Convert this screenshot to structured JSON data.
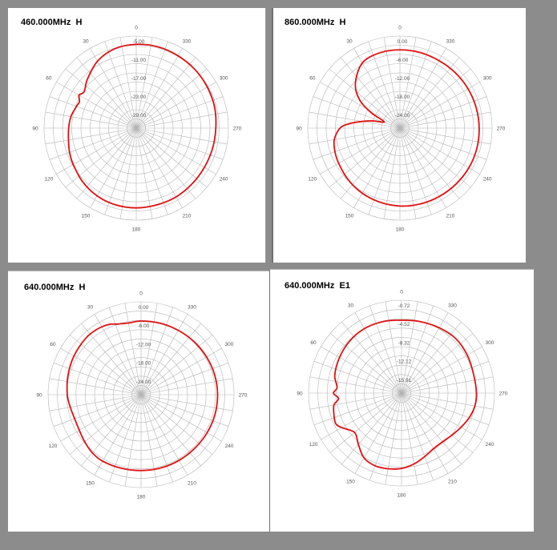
{
  "chart_data": [
    {
      "type": "line",
      "polar": true,
      "title": "460.000MHz  H",
      "angle_tick_labels": [
        "0",
        "30",
        "60",
        "90",
        "120",
        "150",
        "180",
        "210",
        "240",
        "270",
        "300",
        "330"
      ],
      "radial_tick_labels": [
        "-5.00",
        "-11.00",
        "-17.00",
        "-23.00",
        "-29.00"
      ],
      "rlim": [
        -35,
        -5
      ],
      "grid": true,
      "series": [
        {
          "color": "#e01010",
          "angles_deg": [
            0,
            15,
            30,
            45,
            55,
            60,
            65,
            70,
            80,
            90,
            100,
            110,
            120,
            135,
            150,
            165,
            180,
            195,
            210,
            225,
            240,
            255,
            270,
            285,
            300,
            315,
            330,
            345
          ],
          "values": [
            -7.7,
            -8.2,
            -9.8,
            -12.5,
            -14.3,
            -13.5,
            -14.6,
            -14.3,
            -13.4,
            -13.0,
            -12.6,
            -11.9,
            -11.3,
            -10.3,
            -9.5,
            -9.1,
            -9.0,
            -9.1,
            -9.1,
            -9.3,
            -9.4,
            -9.3,
            -9.1,
            -8.6,
            -8.3,
            -8.0,
            -7.8,
            -7.6
          ]
        }
      ]
    },
    {
      "type": "line",
      "polar": true,
      "title": "860.000MHz  H",
      "angle_tick_labels": [
        "0",
        "30",
        "60",
        "90",
        "120",
        "150",
        "180",
        "210",
        "240",
        "270",
        "300",
        "330"
      ],
      "radial_tick_labels": [
        "0.00",
        "-6.00",
        "-12.00",
        "-18.00",
        "-24.00"
      ],
      "rlim": [
        -30,
        0
      ],
      "grid": true,
      "series": [
        {
          "color": "#e01010",
          "angles_deg": [
            0,
            15,
            30,
            45,
            55,
            62,
            68,
            75,
            80,
            85,
            90,
            100,
            110,
            120,
            135,
            150,
            165,
            180,
            195,
            210,
            225,
            240,
            255,
            270,
            285,
            300,
            315,
            330,
            345
          ],
          "values": [
            -4.5,
            -4.6,
            -5.5,
            -9.5,
            -14.0,
            -19.5,
            -24.5,
            -21.0,
            -17.5,
            -13.5,
            -10.5,
            -8.3,
            -7.5,
            -7.0,
            -6.2,
            -5.5,
            -5.0,
            -4.6,
            -4.4,
            -4.3,
            -4.2,
            -4.1,
            -4.1,
            -4.2,
            -4.3,
            -4.4,
            -4.5,
            -4.6,
            -4.5
          ]
        }
      ]
    },
    {
      "type": "line",
      "polar": true,
      "title": "640.000MHz  H",
      "angle_tick_labels": [
        "0",
        "30",
        "60",
        "90",
        "120",
        "150",
        "180",
        "210",
        "240",
        "270",
        "300",
        "330"
      ],
      "radial_tick_labels": [
        "0.00",
        "-6.00",
        "-12.00",
        "-18.00",
        "-24.00"
      ],
      "rlim": [
        -30,
        0
      ],
      "grid": true,
      "series": [
        {
          "color": "#e01010",
          "angles_deg": [
            0,
            10,
            18,
            25,
            35,
            45,
            60,
            75,
            90,
            100,
            110,
            120,
            130,
            140,
            150,
            165,
            180,
            195,
            210,
            225,
            240,
            255,
            270,
            285,
            300,
            315,
            330,
            345
          ],
          "values": [
            -6.2,
            -6.5,
            -6.0,
            -5.0,
            -4.5,
            -4.5,
            -5.0,
            -5.6,
            -6.2,
            -6.8,
            -7.2,
            -7.0,
            -6.3,
            -5.5,
            -5.2,
            -5.4,
            -5.5,
            -5.5,
            -5.5,
            -5.5,
            -5.4,
            -5.3,
            -5.3,
            -5.4,
            -5.6,
            -5.8,
            -6.0,
            -6.1
          ]
        }
      ]
    },
    {
      "type": "line",
      "polar": true,
      "title": "640.000MHz  E1",
      "angle_tick_labels": [
        "0",
        "30",
        "60",
        "90",
        "120",
        "150",
        "180",
        "210",
        "240",
        "270",
        "300",
        "330"
      ],
      "radial_tick_labels": [
        "-0.72",
        "-4.52",
        "-8.32",
        "-12.12",
        "-15.91"
      ],
      "rlim": [
        -19.72,
        -0.72
      ],
      "grid": true,
      "series": [
        {
          "color": "#e01010",
          "angles_deg": [
            0,
            15,
            30,
            45,
            60,
            75,
            85,
            90,
            95,
            100,
            108,
            115,
            120,
            130,
            140,
            150,
            160,
            170,
            180,
            190,
            200,
            210,
            220,
            230,
            240,
            250,
            260,
            270,
            285,
            300,
            315,
            330,
            345
          ],
          "values": [
            -4.8,
            -4.6,
            -4.5,
            -4.7,
            -5.1,
            -5.6,
            -6.5,
            -5.8,
            -6.8,
            -5.7,
            -5.2,
            -4.9,
            -5.6,
            -7.2,
            -6.0,
            -4.4,
            -3.9,
            -4.0,
            -4.3,
            -5.0,
            -5.9,
            -6.6,
            -6.7,
            -6.3,
            -5.7,
            -5.0,
            -4.5,
            -4.4,
            -4.5,
            -4.2,
            -4.0,
            -4.3,
            -4.6
          ]
        }
      ]
    }
  ]
}
